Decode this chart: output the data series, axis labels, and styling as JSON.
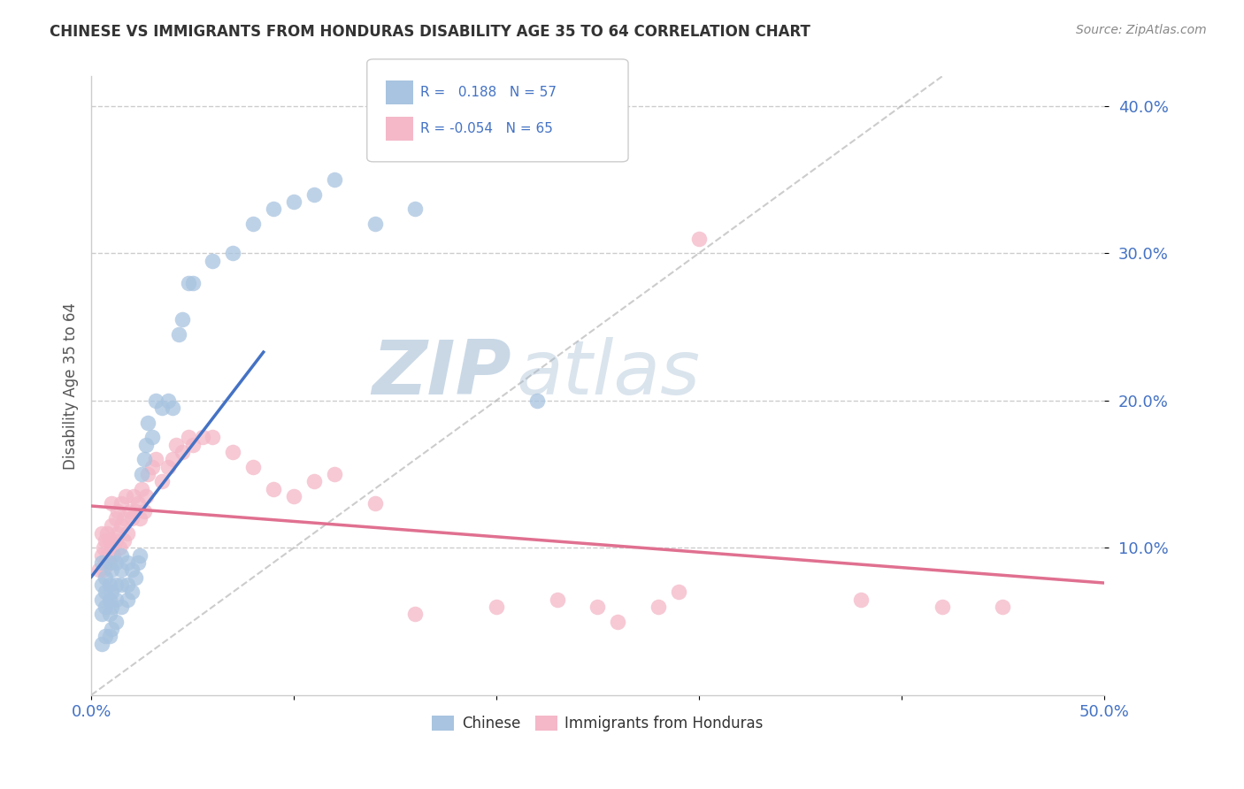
{
  "title": "CHINESE VS IMMIGRANTS FROM HONDURAS DISABILITY AGE 35 TO 64 CORRELATION CHART",
  "source": "Source: ZipAtlas.com",
  "ylabel": "Disability Age 35 to 64",
  "xlim": [
    0.0,
    0.5
  ],
  "ylim": [
    0.0,
    0.42
  ],
  "xticks": [
    0.0,
    0.1,
    0.2,
    0.3,
    0.4,
    0.5
  ],
  "xticklabels": [
    "0.0%",
    "",
    "",
    "",
    "",
    "50.0%"
  ],
  "yticks": [
    0.1,
    0.2,
    0.3,
    0.4
  ],
  "yticklabels": [
    "10.0%",
    "20.0%",
    "30.0%",
    "40.0%"
  ],
  "chinese_color": "#a8c4e0",
  "chinese_line_color": "#4472c4",
  "honduras_color": "#f4b8c8",
  "honduras_line_color": "#e07090",
  "watermark_zip": "ZIP",
  "watermark_atlas": "atlas",
  "chinese_scatter_x": [
    0.005,
    0.005,
    0.005,
    0.005,
    0.005,
    0.007,
    0.007,
    0.007,
    0.007,
    0.009,
    0.009,
    0.009,
    0.009,
    0.009,
    0.01,
    0.01,
    0.01,
    0.01,
    0.012,
    0.012,
    0.012,
    0.012,
    0.015,
    0.015,
    0.015,
    0.015,
    0.018,
    0.018,
    0.018,
    0.02,
    0.02,
    0.022,
    0.023,
    0.024,
    0.025,
    0.026,
    0.027,
    0.028,
    0.03,
    0.032,
    0.035,
    0.038,
    0.04,
    0.043,
    0.045,
    0.048,
    0.05,
    0.06,
    0.07,
    0.08,
    0.09,
    0.1,
    0.11,
    0.12,
    0.14,
    0.16,
    0.22
  ],
  "chinese_scatter_y": [
    0.035,
    0.055,
    0.065,
    0.075,
    0.09,
    0.04,
    0.06,
    0.07,
    0.08,
    0.04,
    0.055,
    0.065,
    0.075,
    0.09,
    0.045,
    0.06,
    0.07,
    0.085,
    0.05,
    0.065,
    0.075,
    0.09,
    0.06,
    0.075,
    0.085,
    0.095,
    0.065,
    0.075,
    0.09,
    0.07,
    0.085,
    0.08,
    0.09,
    0.095,
    0.15,
    0.16,
    0.17,
    0.185,
    0.175,
    0.2,
    0.195,
    0.2,
    0.195,
    0.245,
    0.255,
    0.28,
    0.28,
    0.295,
    0.3,
    0.32,
    0.33,
    0.335,
    0.34,
    0.35,
    0.32,
    0.33,
    0.2
  ],
  "honduras_scatter_x": [
    0.004,
    0.005,
    0.005,
    0.006,
    0.006,
    0.007,
    0.007,
    0.008,
    0.008,
    0.009,
    0.009,
    0.01,
    0.01,
    0.01,
    0.011,
    0.012,
    0.012,
    0.013,
    0.013,
    0.014,
    0.015,
    0.015,
    0.016,
    0.016,
    0.017,
    0.018,
    0.019,
    0.02,
    0.021,
    0.022,
    0.023,
    0.024,
    0.025,
    0.026,
    0.027,
    0.028,
    0.03,
    0.032,
    0.035,
    0.038,
    0.04,
    0.042,
    0.045,
    0.048,
    0.05,
    0.055,
    0.06,
    0.07,
    0.08,
    0.09,
    0.1,
    0.11,
    0.12,
    0.14,
    0.16,
    0.2,
    0.23,
    0.25,
    0.26,
    0.28,
    0.29,
    0.3,
    0.38,
    0.42,
    0.45
  ],
  "honduras_scatter_y": [
    0.085,
    0.095,
    0.11,
    0.085,
    0.1,
    0.09,
    0.105,
    0.095,
    0.11,
    0.09,
    0.105,
    0.1,
    0.115,
    0.13,
    0.095,
    0.105,
    0.12,
    0.11,
    0.125,
    0.1,
    0.115,
    0.13,
    0.105,
    0.12,
    0.135,
    0.11,
    0.125,
    0.12,
    0.135,
    0.125,
    0.13,
    0.12,
    0.14,
    0.125,
    0.135,
    0.15,
    0.155,
    0.16,
    0.145,
    0.155,
    0.16,
    0.17,
    0.165,
    0.175,
    0.17,
    0.175,
    0.175,
    0.165,
    0.155,
    0.14,
    0.135,
    0.145,
    0.15,
    0.13,
    0.055,
    0.06,
    0.065,
    0.06,
    0.05,
    0.06,
    0.07,
    0.31,
    0.065,
    0.06,
    0.06
  ]
}
